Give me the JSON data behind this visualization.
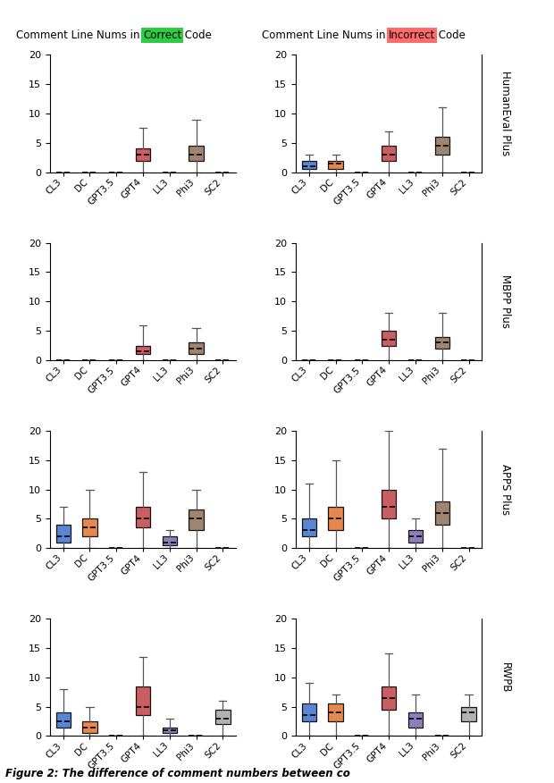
{
  "correct_word": "Correct",
  "incorrect_word": "Incorrect",
  "correct_bg": "#2ecc40",
  "incorrect_bg": "#ff6b6b",
  "row_labels": [
    "HumanEval Plus",
    "MBPP Plus",
    "APPS Plus",
    "RWPB"
  ],
  "categories": [
    "CL3",
    "DC",
    "GPT3.5",
    "GPT4",
    "LL3",
    "Phi3",
    "SC2"
  ],
  "ylim": [
    0,
    20
  ],
  "yticks": [
    0,
    5,
    10,
    15,
    20
  ],
  "caption": "Figure 2: The difference of comment numbers between co",
  "box_colors_map": {
    "CL3": "#4878cf",
    "DC": "#e07b3c",
    "GPT3.5": "#aaaaaa",
    "GPT4": "#c44e52",
    "LL3": "#8172b3",
    "Phi3": "#937860",
    "SC2": "#aaaaaa"
  },
  "data": {
    "HumanEval Plus": {
      "correct": {
        "CL3": {
          "whislo": 0,
          "q1": 0,
          "med": 0,
          "q3": 0,
          "whishi": 0
        },
        "DC": {
          "whislo": 0,
          "q1": 0,
          "med": 0,
          "q3": 0,
          "whishi": 0
        },
        "GPT3.5": {
          "whislo": 0,
          "q1": 0,
          "med": 0,
          "q3": 0,
          "whishi": 0
        },
        "GPT4": {
          "whislo": 0,
          "q1": 2,
          "med": 3,
          "q3": 4,
          "whishi": 7.5
        },
        "LL3": {
          "whislo": 0,
          "q1": 0,
          "med": 0,
          "q3": 0,
          "whishi": 0
        },
        "Phi3": {
          "whislo": 0,
          "q1": 2,
          "med": 3,
          "q3": 4.5,
          "whishi": 9
        },
        "SC2": {
          "whislo": 0,
          "q1": 0,
          "med": 0,
          "q3": 0,
          "whishi": 0
        }
      },
      "incorrect": {
        "CL3": {
          "whislo": 0,
          "q1": 0.5,
          "med": 1,
          "q3": 2,
          "whishi": 3
        },
        "DC": {
          "whislo": 0,
          "q1": 0.5,
          "med": 1.5,
          "q3": 2,
          "whishi": 3
        },
        "GPT3.5": {
          "whislo": 0,
          "q1": 0,
          "med": 0,
          "q3": 0,
          "whishi": 0
        },
        "GPT4": {
          "whislo": 0,
          "q1": 2,
          "med": 3,
          "q3": 4.5,
          "whishi": 7
        },
        "LL3": {
          "whislo": 0,
          "q1": 0,
          "med": 0,
          "q3": 0,
          "whishi": 0
        },
        "Phi3": {
          "whislo": 0,
          "q1": 3,
          "med": 4.5,
          "q3": 6,
          "whishi": 11
        },
        "SC2": {
          "whislo": 0,
          "q1": 0,
          "med": 0,
          "q3": 0,
          "whishi": 0
        }
      }
    },
    "MBPP Plus": {
      "correct": {
        "CL3": {
          "whislo": 0,
          "q1": 0,
          "med": 0,
          "q3": 0,
          "whishi": 0
        },
        "DC": {
          "whislo": 0,
          "q1": 0,
          "med": 0,
          "q3": 0,
          "whishi": 0
        },
        "GPT3.5": {
          "whislo": 0,
          "q1": 0,
          "med": 0,
          "q3": 0,
          "whishi": 0
        },
        "GPT4": {
          "whislo": 0,
          "q1": 1,
          "med": 1.5,
          "q3": 2.5,
          "whishi": 6
        },
        "LL3": {
          "whislo": 0,
          "q1": 0,
          "med": 0,
          "q3": 0,
          "whishi": 0
        },
        "Phi3": {
          "whislo": 0,
          "q1": 1,
          "med": 2,
          "q3": 3,
          "whishi": 5.5
        },
        "SC2": {
          "whislo": 0,
          "q1": 0,
          "med": 0,
          "q3": 0,
          "whishi": 0
        }
      },
      "incorrect": {
        "CL3": {
          "whislo": 0,
          "q1": 0,
          "med": 0,
          "q3": 0,
          "whishi": 0
        },
        "DC": {
          "whislo": 0,
          "q1": 0,
          "med": 0,
          "q3": 0,
          "whishi": 0
        },
        "GPT3.5": {
          "whislo": 0,
          "q1": 0,
          "med": 0,
          "q3": 0,
          "whishi": 0
        },
        "GPT4": {
          "whislo": 0,
          "q1": 2.5,
          "med": 3.5,
          "q3": 5,
          "whishi": 8
        },
        "LL3": {
          "whislo": 0,
          "q1": 0,
          "med": 0,
          "q3": 0,
          "whishi": 0
        },
        "Phi3": {
          "whislo": 0,
          "q1": 2,
          "med": 3,
          "q3": 4,
          "whishi": 8
        },
        "SC2": {
          "whislo": 0,
          "q1": 0,
          "med": 0,
          "q3": 0,
          "whishi": 0
        }
      }
    },
    "APPS Plus": {
      "correct": {
        "CL3": {
          "whislo": 0,
          "q1": 1,
          "med": 2,
          "q3": 4,
          "whishi": 7
        },
        "DC": {
          "whislo": 0,
          "q1": 2,
          "med": 3.5,
          "q3": 5,
          "whishi": 10
        },
        "GPT3.5": {
          "whislo": 0,
          "q1": 0,
          "med": 0,
          "q3": 0,
          "whishi": 0
        },
        "GPT4": {
          "whislo": 0,
          "q1": 3.5,
          "med": 5,
          "q3": 7,
          "whishi": 13
        },
        "LL3": {
          "whislo": 0,
          "q1": 0.5,
          "med": 1,
          "q3": 2,
          "whishi": 3
        },
        "Phi3": {
          "whislo": 0,
          "q1": 3,
          "med": 5,
          "q3": 6.5,
          "whishi": 10
        },
        "SC2": {
          "whislo": 0,
          "q1": 0,
          "med": 0,
          "q3": 0,
          "whishi": 0
        }
      },
      "incorrect": {
        "CL3": {
          "whislo": 0,
          "q1": 2,
          "med": 3,
          "q3": 5,
          "whishi": 11
        },
        "DC": {
          "whislo": 0,
          "q1": 3,
          "med": 5,
          "q3": 7,
          "whishi": 15
        },
        "GPT3.5": {
          "whislo": 0,
          "q1": 0,
          "med": 0,
          "q3": 0,
          "whishi": 0
        },
        "GPT4": {
          "whislo": 0,
          "q1": 5,
          "med": 7,
          "q3": 10,
          "whishi": 20
        },
        "LL3": {
          "whislo": 0,
          "q1": 1,
          "med": 2,
          "q3": 3,
          "whishi": 5
        },
        "Phi3": {
          "whislo": 0,
          "q1": 4,
          "med": 6,
          "q3": 8,
          "whishi": 17
        },
        "SC2": {
          "whislo": 0,
          "q1": 0,
          "med": 0,
          "q3": 0,
          "whishi": 0
        }
      }
    },
    "RWPB": {
      "correct": {
        "CL3": {
          "whislo": 0,
          "q1": 1.5,
          "med": 2.5,
          "q3": 4,
          "whishi": 8
        },
        "DC": {
          "whislo": 0,
          "q1": 0.5,
          "med": 1.5,
          "q3": 2.5,
          "whishi": 5
        },
        "GPT3.5": {
          "whislo": 0,
          "q1": 0,
          "med": 0,
          "q3": 0,
          "whishi": 0
        },
        "GPT4": {
          "whislo": 0,
          "q1": 3.5,
          "med": 5,
          "q3": 8.5,
          "whishi": 13.5
        },
        "LL3": {
          "whislo": 0,
          "q1": 0.5,
          "med": 1,
          "q3": 1.5,
          "whishi": 3
        },
        "Phi3": {
          "whislo": 0,
          "q1": 0,
          "med": 0,
          "q3": 0,
          "whishi": 0
        },
        "SC2": {
          "whislo": 0,
          "q1": 2,
          "med": 3,
          "q3": 4.5,
          "whishi": 6
        }
      },
      "incorrect": {
        "CL3": {
          "whislo": 0,
          "q1": 2.5,
          "med": 3.5,
          "q3": 5.5,
          "whishi": 9
        },
        "DC": {
          "whislo": 0,
          "q1": 2.5,
          "med": 4,
          "q3": 5.5,
          "whishi": 7
        },
        "GPT3.5": {
          "whislo": 0,
          "q1": 0,
          "med": 0,
          "q3": 0,
          "whishi": 0
        },
        "GPT4": {
          "whislo": 0,
          "q1": 4.5,
          "med": 6.5,
          "q3": 8.5,
          "whishi": 14
        },
        "LL3": {
          "whislo": 0,
          "q1": 1.5,
          "med": 3,
          "q3": 4,
          "whishi": 7
        },
        "Phi3": {
          "whislo": 0,
          "q1": 0,
          "med": 0,
          "q3": 0,
          "whishi": 0
        },
        "SC2": {
          "whislo": 0,
          "q1": 2.5,
          "med": 4,
          "q3": 5,
          "whishi": 7
        }
      }
    }
  }
}
